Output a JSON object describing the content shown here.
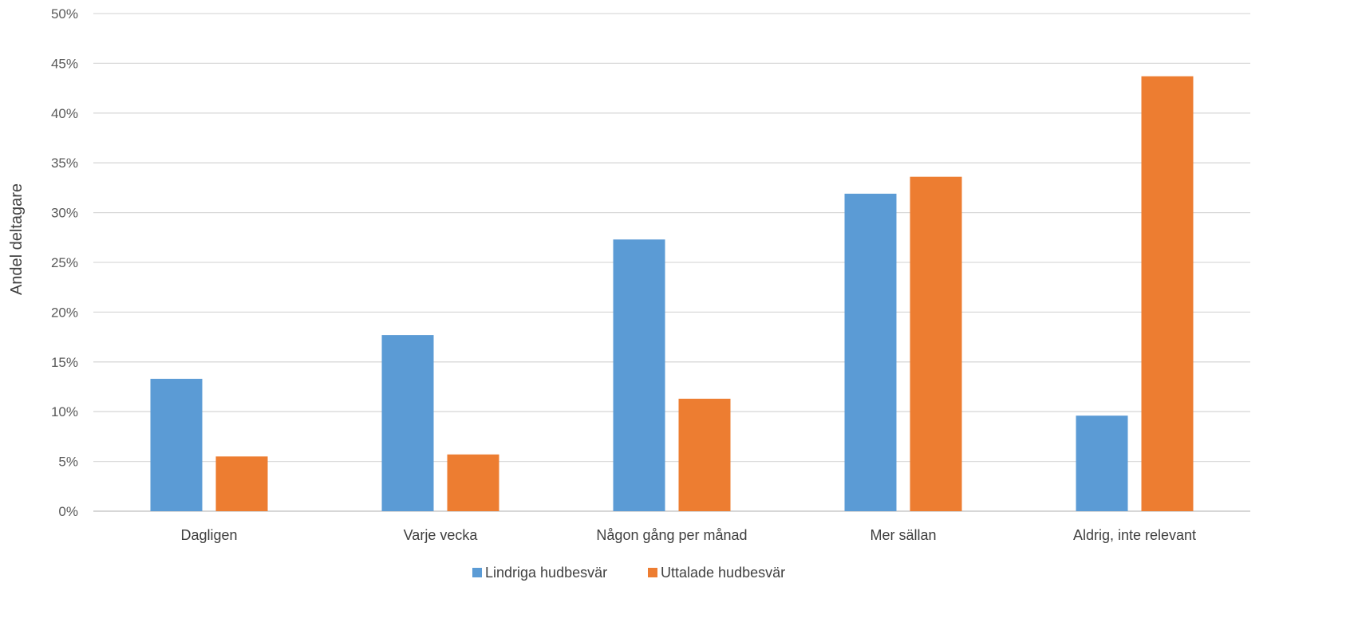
{
  "chart_data": {
    "type": "bar",
    "ylabel": "Andel deltagare",
    "ylim": [
      0,
      50
    ],
    "ytick_step": 5,
    "ytick_suffix": "%",
    "grid": true,
    "legend_position": "bottom",
    "categories": [
      "Dagligen",
      "Varje vecka",
      "Någon gång per månad",
      "Mer sällan",
      "Aldrig, inte relevant"
    ],
    "series": [
      {
        "name": "Lindriga hudbesvär",
        "color": "#5B9BD5",
        "values": [
          13.3,
          17.7,
          27.3,
          31.9,
          9.6
        ]
      },
      {
        "name": "Uttalade hudbesvär",
        "color": "#ED7D31",
        "values": [
          5.5,
          5.7,
          11.3,
          33.6,
          43.7
        ]
      }
    ]
  }
}
